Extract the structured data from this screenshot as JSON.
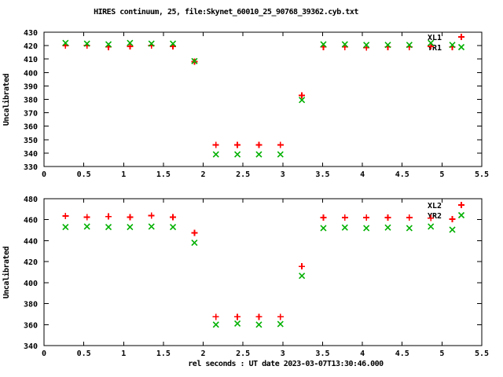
{
  "title": "HIRES continuum, 25, file:Skynet_60010_25_90768_39362.cyb.txt",
  "xlabel": "rel seconds : UT date 2023-03-07T13:30:46.000",
  "colors": {
    "xl_series": "#ff0000",
    "yr_series": "#00b000",
    "axis": "#000000",
    "background": "#ffffff",
    "text": "#000000"
  },
  "chart_data": [
    {
      "type": "scatter",
      "panel": "top",
      "ylabel": "Uncalibrated",
      "xlim": [
        0,
        5.5
      ],
      "ylim": [
        330,
        430
      ],
      "xtick_step": 0.5,
      "ytick_step": 10,
      "grid": false,
      "legend_position": "top-right-inside",
      "x": [
        0.27,
        0.54,
        0.81,
        1.08,
        1.35,
        1.62,
        1.89,
        2.16,
        2.43,
        2.7,
        2.97,
        3.24,
        3.51,
        3.78,
        4.05,
        4.32,
        4.59,
        4.86,
        5.13
      ],
      "series": [
        {
          "name": "XL1",
          "marker": "plus-marker",
          "color": "#ff0000",
          "values": [
            420,
            420,
            419,
            419.5,
            420,
            419.5,
            408,
            346,
            346,
            346,
            346,
            383,
            419,
            419,
            418.5,
            419,
            419,
            419.5,
            419
          ]
        },
        {
          "name": "YR1",
          "marker": "cross-marker",
          "color": "#00b000",
          "values": [
            422,
            421.5,
            421,
            422,
            421.5,
            421.5,
            408.5,
            339,
            339,
            339,
            339,
            379.5,
            421,
            421,
            420.5,
            420.5,
            420.5,
            422,
            420.5
          ]
        }
      ]
    },
    {
      "type": "scatter",
      "panel": "bottom",
      "ylabel": "Uncalibrated",
      "xlim": [
        0,
        5.5
      ],
      "ylim": [
        340,
        480
      ],
      "xtick_step": 0.5,
      "ytick_step": 20,
      "grid": false,
      "legend_position": "top-right-inside",
      "x": [
        0.27,
        0.54,
        0.81,
        1.08,
        1.35,
        1.62,
        1.89,
        2.16,
        2.43,
        2.7,
        2.97,
        3.24,
        3.51,
        3.78,
        4.05,
        4.32,
        4.59,
        4.86,
        5.13
      ],
      "series": [
        {
          "name": "XL2",
          "marker": "plus-marker",
          "color": "#ff0000",
          "values": [
            463.5,
            462.5,
            463,
            462.5,
            464,
            462.5,
            447.5,
            367.5,
            367.5,
            367.5,
            367.5,
            415.5,
            462,
            462,
            462,
            462,
            462,
            461.5,
            460.5
          ]
        },
        {
          "name": "YR2",
          "marker": "cross-marker",
          "color": "#00b000",
          "values": [
            453,
            453.5,
            453,
            453,
            453.5,
            453,
            438,
            360,
            361,
            360,
            360.5,
            406.5,
            452,
            452.5,
            452,
            452.5,
            452,
            453.5,
            450.5
          ]
        }
      ]
    }
  ]
}
